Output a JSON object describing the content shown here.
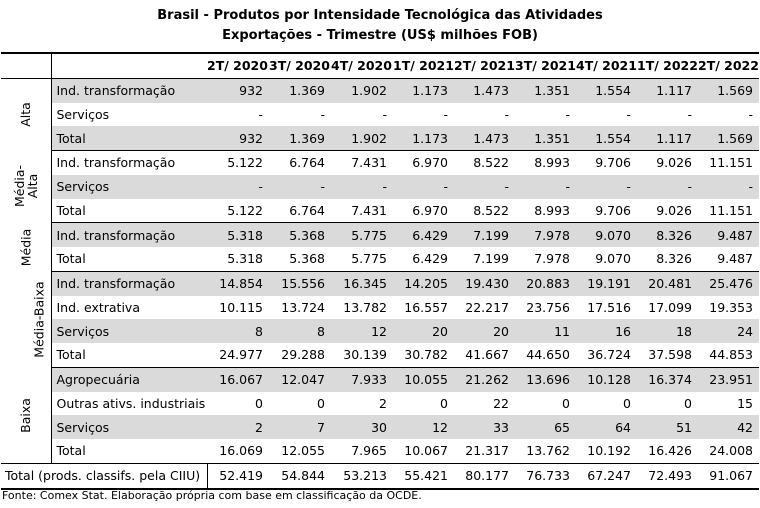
{
  "title": {
    "line1": "Brasil - Produtos por Intensidade Tecnológica das Atividades",
    "line2": "Exportações - Trimestre (US$ milhões FOB)"
  },
  "columns": [
    "2T/ 2020",
    "3T/ 2020",
    "4T/ 2020",
    "1T/ 2021",
    "2T/ 2021",
    "3T/ 2021",
    "4T/ 2021",
    "1T/ 2022",
    "2T/ 2022"
  ],
  "groups": [
    {
      "name": "Alta",
      "name_lines": [
        "Alta"
      ],
      "rows": [
        {
          "label": "Ind. transformação",
          "values": [
            "932",
            "1.369",
            "1.902",
            "1.173",
            "1.473",
            "1.351",
            "1.554",
            "1.117",
            "1.569"
          ],
          "shaded": true
        },
        {
          "label": "Serviços",
          "values": [
            "-",
            "-",
            "-",
            "-",
            "-",
            "-",
            "-",
            "-",
            "-"
          ],
          "shaded": false
        },
        {
          "label": "Total",
          "values": [
            "932",
            "1.369",
            "1.902",
            "1.173",
            "1.473",
            "1.351",
            "1.554",
            "1.117",
            "1.569"
          ],
          "shaded": true
        }
      ]
    },
    {
      "name": "Média-Alta",
      "name_lines": [
        "Média-",
        "Alta"
      ],
      "rows": [
        {
          "label": "Ind. transformação",
          "values": [
            "5.122",
            "6.764",
            "7.431",
            "6.970",
            "8.522",
            "8.993",
            "9.706",
            "9.026",
            "11.151"
          ],
          "shaded": false
        },
        {
          "label": "Serviços",
          "values": [
            "-",
            "-",
            "-",
            "-",
            "-",
            "-",
            "-",
            "-",
            "-"
          ],
          "shaded": true
        },
        {
          "label": "Total",
          "values": [
            "5.122",
            "6.764",
            "7.431",
            "6.970",
            "8.522",
            "8.993",
            "9.706",
            "9.026",
            "11.151"
          ],
          "shaded": false
        }
      ]
    },
    {
      "name": "Média",
      "name_lines": [
        "Média"
      ],
      "rows": [
        {
          "label": "Ind. transformação",
          "values": [
            "5.318",
            "5.368",
            "5.775",
            "6.429",
            "7.199",
            "7.978",
            "9.070",
            "8.326",
            "9.487"
          ],
          "shaded": true
        },
        {
          "label": "Total",
          "values": [
            "5.318",
            "5.368",
            "5.775",
            "6.429",
            "7.199",
            "7.978",
            "9.070",
            "8.326",
            "9.487"
          ],
          "shaded": false
        }
      ]
    },
    {
      "name": "Média-Baixa",
      "name_lines": [
        "Média-Baixa"
      ],
      "rows": [
        {
          "label": "Ind. transformação",
          "values": [
            "14.854",
            "15.556",
            "16.345",
            "14.205",
            "19.430",
            "20.883",
            "19.191",
            "20.481",
            "25.476"
          ],
          "shaded": true
        },
        {
          "label": "Ind. extrativa",
          "values": [
            "10.115",
            "13.724",
            "13.782",
            "16.557",
            "22.217",
            "23.756",
            "17.516",
            "17.099",
            "19.353"
          ],
          "shaded": false
        },
        {
          "label": "Serviços",
          "values": [
            "8",
            "8",
            "12",
            "20",
            "20",
            "11",
            "16",
            "18",
            "24"
          ],
          "shaded": true
        },
        {
          "label": "Total",
          "values": [
            "24.977",
            "29.288",
            "30.139",
            "30.782",
            "41.667",
            "44.650",
            "36.724",
            "37.598",
            "44.853"
          ],
          "shaded": false
        }
      ]
    },
    {
      "name": "Baixa",
      "name_lines": [
        "Baixa"
      ],
      "rows": [
        {
          "label": "Agropecuária",
          "values": [
            "16.067",
            "12.047",
            "7.933",
            "10.055",
            "21.262",
            "13.696",
            "10.128",
            "16.374",
            "23.951"
          ],
          "shaded": true
        },
        {
          "label": "Outras ativs. industriais",
          "values": [
            "0",
            "0",
            "2",
            "0",
            "22",
            "0",
            "0",
            "0",
            "15"
          ],
          "shaded": false
        },
        {
          "label": "Serviços",
          "values": [
            "2",
            "7",
            "30",
            "12",
            "33",
            "65",
            "64",
            "51",
            "42"
          ],
          "shaded": true
        },
        {
          "label": "Total",
          "values": [
            "16.069",
            "12.055",
            "7.965",
            "10.067",
            "21.317",
            "13.762",
            "10.192",
            "16.426",
            "24.008"
          ],
          "shaded": false
        }
      ]
    }
  ],
  "footer_total": {
    "label": "Total (prods. classifs. pela CIIU)",
    "values": [
      "52.419",
      "54.844",
      "53.213",
      "55.421",
      "80.177",
      "76.733",
      "67.247",
      "72.493",
      "91.067"
    ]
  },
  "source": "Fonte: Comex Stat. Elaboração própria com base em classificação da OCDE.",
  "colors": {
    "shaded_row": "#dadada",
    "border": "#000000"
  }
}
